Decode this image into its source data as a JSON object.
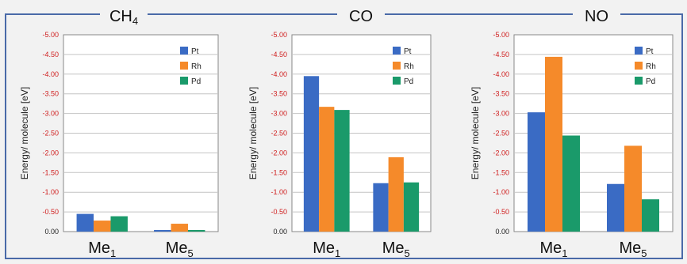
{
  "colors": {
    "frame": "#4a6aa8",
    "ytick": "#d02020",
    "series": {
      "Pt": "#3a6bc4",
      "Rh": "#f58a2a",
      "Pd": "#1a9a6a"
    }
  },
  "chart_data": [
    {
      "type": "bar",
      "title": "CH",
      "title_sub": "4",
      "ylabel": "Energy/ molecule [eV]",
      "ylim": [
        0,
        -5
      ],
      "ytick_labels": [
        "0.00",
        "-0.50",
        "-1.00",
        "-1.50",
        "-2.00",
        "-2.50",
        "-3.00",
        "-3.50",
        "-4.00",
        "-4.50",
        "-5.00"
      ],
      "categories": [
        {
          "base": "Me",
          "sub": "1"
        },
        {
          "base": "Me",
          "sub": "5"
        }
      ],
      "legend_position": "top-right",
      "grid": true,
      "series": [
        {
          "name": "Pt",
          "values": [
            -0.45,
            -0.04
          ]
        },
        {
          "name": "Rh",
          "values": [
            -0.28,
            -0.2
          ]
        },
        {
          "name": "Pd",
          "values": [
            -0.39,
            -0.04
          ]
        }
      ]
    },
    {
      "type": "bar",
      "title": "CO",
      "title_sub": "",
      "ylabel": "Energy/ molecule [eV]",
      "ylim": [
        0,
        -5
      ],
      "ytick_labels": [
        "0.00",
        "-0.50",
        "-1.00",
        "-1.50",
        "-2.00",
        "-2.50",
        "-3.00",
        "-3.50",
        "-4.00",
        "-4.50",
        "-5.00"
      ],
      "categories": [
        {
          "base": "Me",
          "sub": "1"
        },
        {
          "base": "Me",
          "sub": "5"
        }
      ],
      "legend_position": "top-right",
      "grid": true,
      "series": [
        {
          "name": "Pt",
          "values": [
            -3.95,
            -1.23
          ]
        },
        {
          "name": "Rh",
          "values": [
            -3.17,
            -1.89
          ]
        },
        {
          "name": "Pd",
          "values": [
            -3.09,
            -1.25
          ]
        }
      ]
    },
    {
      "type": "bar",
      "title": "NO",
      "title_sub": "",
      "ylabel": "Energy/ molecule [eV]",
      "ylim": [
        0,
        -5
      ],
      "ytick_labels": [
        "0.00",
        "-0.50",
        "-1.00",
        "-1.50",
        "-2.00",
        "-2.50",
        "-3.00",
        "-3.50",
        "-4.00",
        "-4.50",
        "-5.00"
      ],
      "categories": [
        {
          "base": "Me",
          "sub": "1"
        },
        {
          "base": "Me",
          "sub": "5"
        }
      ],
      "legend_position": "top-right",
      "grid": true,
      "series": [
        {
          "name": "Pt",
          "values": [
            -3.03,
            -1.21
          ]
        },
        {
          "name": "Rh",
          "values": [
            -4.44,
            -2.18
          ]
        },
        {
          "name": "Pd",
          "values": [
            -2.44,
            -0.82
          ]
        }
      ]
    }
  ]
}
